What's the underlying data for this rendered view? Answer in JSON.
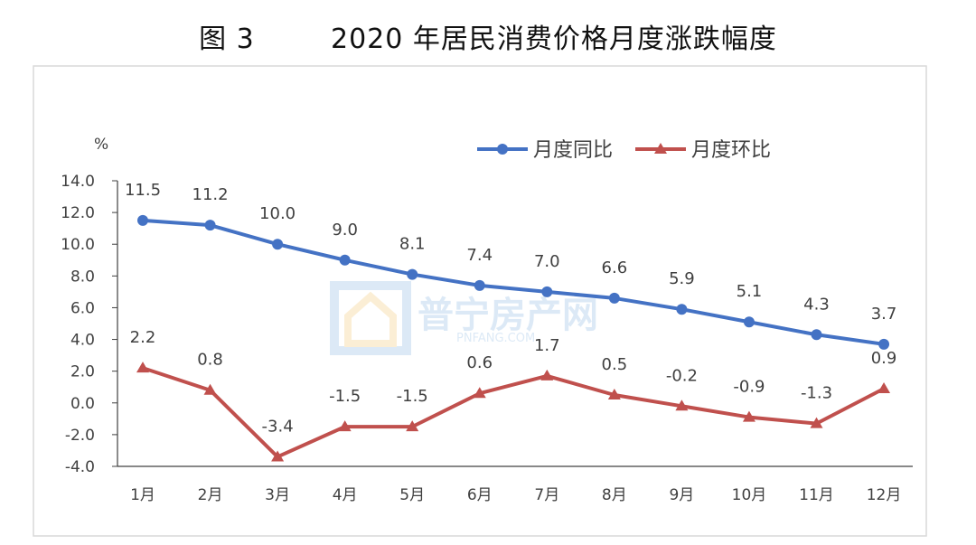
{
  "chart_data": {
    "type": "line",
    "title": "图 3        2020 年居民消费价格月度涨跌幅度",
    "ylabel": "%",
    "xlabel": "",
    "ylim": [
      -4.0,
      14.0
    ],
    "yticks": [
      "14.0",
      "12.0",
      "10.0",
      "8.0",
      "6.0",
      "4.0",
      "2.0",
      "0.0",
      "-2.0",
      "-4.0"
    ],
    "categories": [
      "1月",
      "2月",
      "3月",
      "4月",
      "5月",
      "6月",
      "7月",
      "8月",
      "9月",
      "10月",
      "11月",
      "12月"
    ],
    "series": [
      {
        "name": "月度同比",
        "color": "#4472c4",
        "marker": "circle",
        "values": [
          11.5,
          11.2,
          10.0,
          9.0,
          8.1,
          7.4,
          7.0,
          6.6,
          5.9,
          5.1,
          4.3,
          3.7
        ],
        "labels": [
          "11.5",
          "11.2",
          "10.0",
          "9.0",
          "8.1",
          "7.4",
          "7.0",
          "6.6",
          "5.9",
          "5.1",
          "4.3",
          "3.7"
        ]
      },
      {
        "name": "月度环比",
        "color": "#c0504d",
        "marker": "triangle",
        "values": [
          2.2,
          0.8,
          -3.4,
          -1.5,
          -1.5,
          0.6,
          1.7,
          0.5,
          -0.2,
          -0.9,
          -1.3,
          0.9
        ],
        "labels": [
          "2.2",
          "0.8",
          "-3.4",
          "-1.5",
          "-1.5",
          "0.6",
          "1.7",
          "0.5",
          "-0.2",
          "-0.9",
          "-1.3",
          "0.9"
        ]
      }
    ],
    "legend": "top-right",
    "grid": false
  },
  "watermark": {
    "text": "普宁房产网",
    "sub": "PNFANG.COM"
  }
}
